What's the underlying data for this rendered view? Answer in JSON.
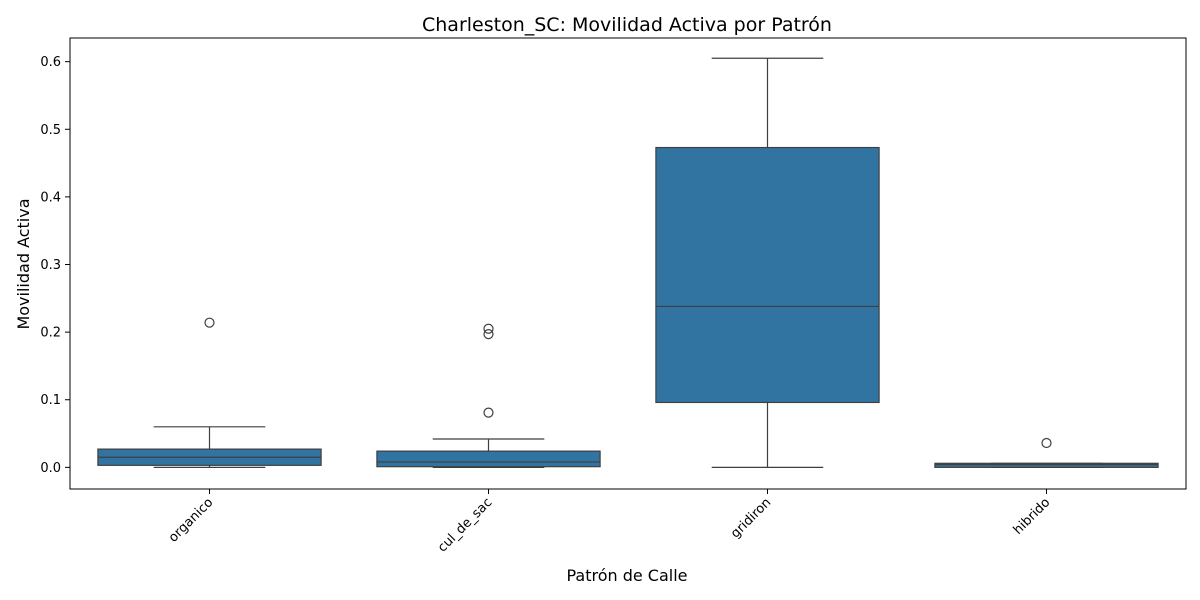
{
  "chart_data": {
    "type": "box",
    "title": "Charleston_SC: Movilidad Activa por Patrón",
    "xlabel": "Patrón de Calle",
    "ylabel": "Movilidad Activa",
    "ylim": [
      -0.032,
      0.635
    ],
    "yticks": [
      0.0,
      0.1,
      0.2,
      0.3,
      0.4,
      0.5,
      0.6
    ],
    "ytick_labels": [
      "0.0",
      "0.1",
      "0.2",
      "0.3",
      "0.4",
      "0.5",
      "0.6"
    ],
    "grid": false,
    "legend": "none",
    "box_color": "#3274a1",
    "edge_color": "#3f3f3f",
    "categories": [
      "organico",
      "cul_de_sac",
      "gridiron",
      "hibrido"
    ],
    "boxes": [
      {
        "category": "organico",
        "whisker_low": 0.0,
        "q1": 0.003,
        "median": 0.015,
        "q3": 0.027,
        "whisker_high": 0.06,
        "outliers": [
          0.214
        ]
      },
      {
        "category": "cul_de_sac",
        "whisker_low": 0.0,
        "q1": 0.001,
        "median": 0.008,
        "q3": 0.024,
        "whisker_high": 0.042,
        "outliers": [
          0.205,
          0.197,
          0.081
        ]
      },
      {
        "category": "gridiron",
        "whisker_low": 0.0,
        "q1": 0.096,
        "median": 0.238,
        "q3": 0.473,
        "whisker_high": 0.605,
        "outliers": []
      },
      {
        "category": "hibrido",
        "whisker_low": 0.0,
        "q1": 0.0,
        "median": 0.004,
        "q3": 0.006,
        "whisker_high": 0.006,
        "outliers": [
          0.036
        ]
      }
    ]
  }
}
